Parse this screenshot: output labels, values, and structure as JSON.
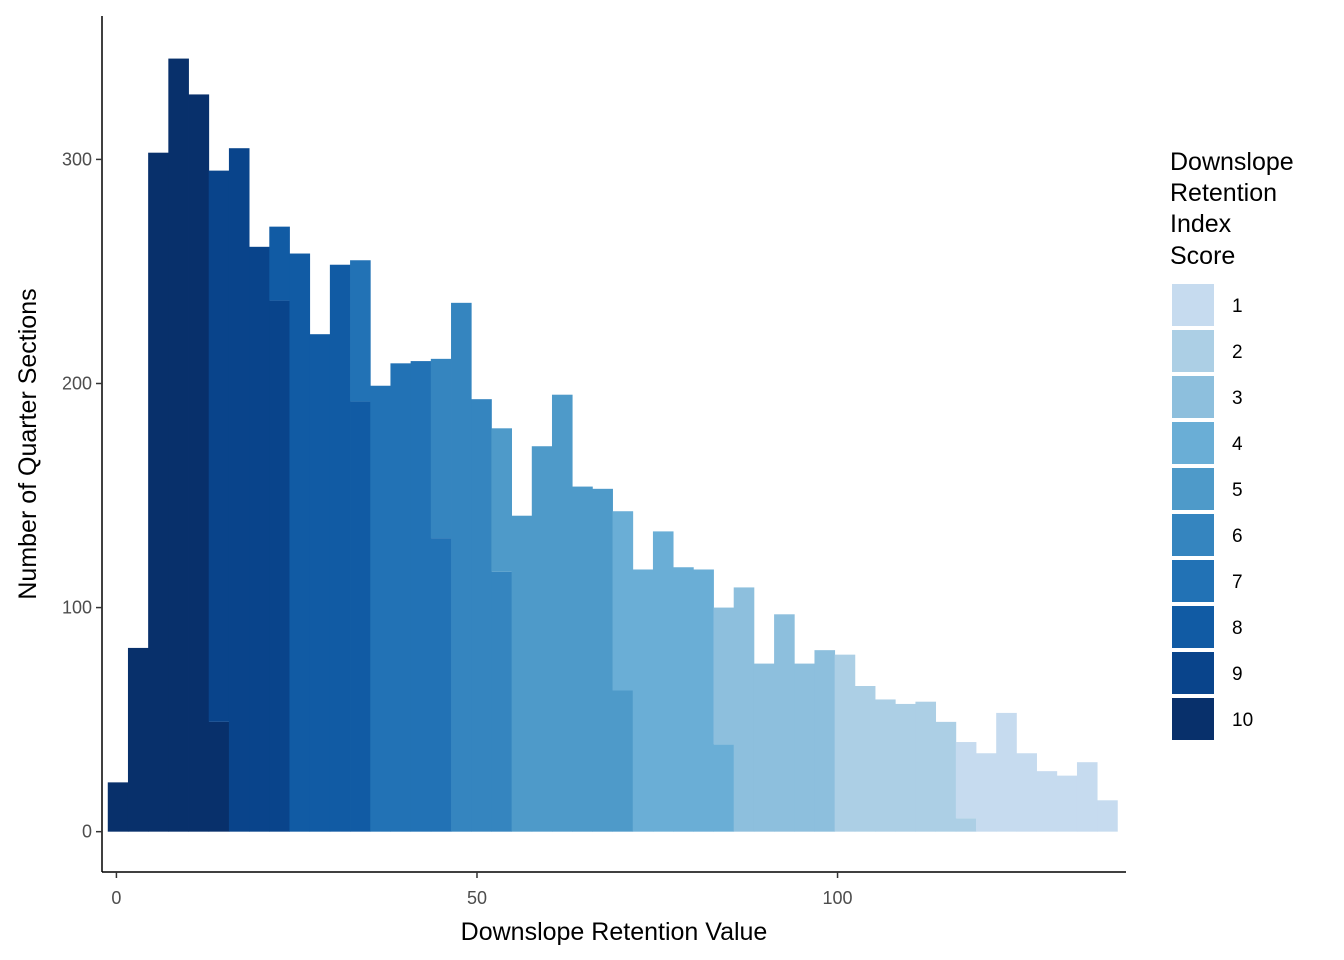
{
  "chart_data": {
    "type": "bar",
    "subtype": "stacked histogram",
    "xlabel": "Downslope Retention Value",
    "ylabel": "Number of Quarter Sections",
    "xlim": [
      -2,
      140
    ],
    "ylim": [
      -18,
      364
    ],
    "x_ticks": [
      0,
      50,
      100
    ],
    "y_ticks": [
      0,
      100,
      200,
      300
    ],
    "grid": false,
    "legend": {
      "title": [
        "Downslope",
        "Retention",
        "Index",
        "Score"
      ],
      "position": "right",
      "entries": [
        {
          "label": "1",
          "color": "#C6DBEF"
        },
        {
          "label": "2",
          "color": "#ACCFE5"
        },
        {
          "label": "3",
          "color": "#8DBFDD"
        },
        {
          "label": "4",
          "color": "#6AAED6"
        },
        {
          "label": "5",
          "color": "#4E9AC9"
        },
        {
          "label": "6",
          "color": "#3585BF"
        },
        {
          "label": "7",
          "color": "#2272B5"
        },
        {
          "label": "8",
          "color": "#115BA4"
        },
        {
          "label": "9",
          "color": "#09448B"
        },
        {
          "label": "10",
          "color": "#08306B"
        }
      ]
    },
    "bins": [
      {
        "x0": -1.2,
        "x1": 1.6,
        "segments": [
          {
            "score": "10",
            "count": 22
          }
        ]
      },
      {
        "x0": 1.6,
        "x1": 4.4,
        "segments": [
          {
            "score": "10",
            "count": 82
          }
        ]
      },
      {
        "x0": 4.4,
        "x1": 7.2,
        "segments": [
          {
            "score": "10",
            "count": 303
          }
        ]
      },
      {
        "x0": 7.2,
        "x1": 10.0,
        "segments": [
          {
            "score": "10",
            "count": 345
          }
        ]
      },
      {
        "x0": 10.0,
        "x1": 12.8,
        "segments": [
          {
            "score": "10",
            "count": 329
          }
        ]
      },
      {
        "x0": 12.8,
        "x1": 15.6,
        "segments": [
          {
            "score": "10",
            "count": 49
          },
          {
            "score": "9",
            "count": 246
          }
        ]
      },
      {
        "x0": 15.6,
        "x1": 18.4,
        "segments": [
          {
            "score": "9",
            "count": 305
          }
        ]
      },
      {
        "x0": 18.4,
        "x1": 21.2,
        "segments": [
          {
            "score": "9",
            "count": 261
          }
        ]
      },
      {
        "x0": 21.2,
        "x1": 24.0,
        "segments": [
          {
            "score": "9",
            "count": 237
          },
          {
            "score": "8",
            "count": 33
          }
        ]
      },
      {
        "x0": 24.0,
        "x1": 26.8,
        "segments": [
          {
            "score": "8",
            "count": 258
          }
        ]
      },
      {
        "x0": 26.8,
        "x1": 29.6,
        "segments": [
          {
            "score": "8",
            "count": 222
          }
        ]
      },
      {
        "x0": 29.6,
        "x1": 32.4,
        "segments": [
          {
            "score": "8",
            "count": 253
          }
        ]
      },
      {
        "x0": 32.4,
        "x1": 35.2,
        "segments": [
          {
            "score": "8",
            "count": 192
          },
          {
            "score": "7",
            "count": 63
          }
        ]
      },
      {
        "x0": 35.2,
        "x1": 38.0,
        "segments": [
          {
            "score": "7",
            "count": 199
          }
        ]
      },
      {
        "x0": 38.0,
        "x1": 40.8,
        "segments": [
          {
            "score": "7",
            "count": 209
          }
        ]
      },
      {
        "x0": 40.8,
        "x1": 43.6,
        "segments": [
          {
            "score": "7",
            "count": 210
          }
        ]
      },
      {
        "x0": 43.6,
        "x1": 46.4,
        "segments": [
          {
            "score": "7",
            "count": 131
          },
          {
            "score": "6",
            "count": 80
          }
        ]
      },
      {
        "x0": 46.4,
        "x1": 49.2,
        "segments": [
          {
            "score": "6",
            "count": 236
          }
        ]
      },
      {
        "x0": 49.2,
        "x1": 52.0,
        "segments": [
          {
            "score": "6",
            "count": 193
          }
        ]
      },
      {
        "x0": 52.0,
        "x1": 54.8,
        "segments": [
          {
            "score": "6",
            "count": 116
          },
          {
            "score": "5",
            "count": 64
          }
        ]
      },
      {
        "x0": 54.8,
        "x1": 57.6,
        "segments": [
          {
            "score": "5",
            "count": 141
          }
        ]
      },
      {
        "x0": 57.6,
        "x1": 60.4,
        "segments": [
          {
            "score": "5",
            "count": 172
          }
        ]
      },
      {
        "x0": 60.4,
        "x1": 63.2,
        "segments": [
          {
            "score": "5",
            "count": 195
          }
        ]
      },
      {
        "x0": 63.2,
        "x1": 66.0,
        "segments": [
          {
            "score": "5",
            "count": 154
          }
        ]
      },
      {
        "x0": 66.0,
        "x1": 68.8,
        "segments": [
          {
            "score": "5",
            "count": 153
          }
        ]
      },
      {
        "x0": 68.8,
        "x1": 71.6,
        "segments": [
          {
            "score": "5",
            "count": 63
          },
          {
            "score": "4",
            "count": 80
          }
        ]
      },
      {
        "x0": 71.6,
        "x1": 74.4,
        "segments": [
          {
            "score": "4",
            "count": 117
          }
        ]
      },
      {
        "x0": 74.4,
        "x1": 77.2,
        "segments": [
          {
            "score": "4",
            "count": 134
          }
        ]
      },
      {
        "x0": 77.2,
        "x1": 80.0,
        "segments": [
          {
            "score": "4",
            "count": 118
          }
        ]
      },
      {
        "x0": 80.0,
        "x1": 82.8,
        "segments": [
          {
            "score": "4",
            "count": 117
          }
        ]
      },
      {
        "x0": 82.8,
        "x1": 85.6,
        "segments": [
          {
            "score": "4",
            "count": 39
          },
          {
            "score": "3",
            "count": 61
          }
        ]
      },
      {
        "x0": 85.6,
        "x1": 88.4,
        "segments": [
          {
            "score": "3",
            "count": 109
          }
        ]
      },
      {
        "x0": 88.4,
        "x1": 91.2,
        "segments": [
          {
            "score": "3",
            "count": 75
          }
        ]
      },
      {
        "x0": 91.2,
        "x1": 94.0,
        "segments": [
          {
            "score": "3",
            "count": 97
          }
        ]
      },
      {
        "x0": 94.0,
        "x1": 96.8,
        "segments": [
          {
            "score": "3",
            "count": 75
          }
        ]
      },
      {
        "x0": 96.8,
        "x1": 99.6,
        "segments": [
          {
            "score": "3",
            "count": 81
          }
        ]
      },
      {
        "x0": 99.6,
        "x1": 102.4,
        "segments": [
          {
            "score": "2",
            "count": 79
          }
        ]
      },
      {
        "x0": 102.4,
        "x1": 105.2,
        "segments": [
          {
            "score": "2",
            "count": 65
          }
        ]
      },
      {
        "x0": 105.2,
        "x1": 108.0,
        "segments": [
          {
            "score": "2",
            "count": 59
          }
        ]
      },
      {
        "x0": 108.0,
        "x1": 110.8,
        "segments": [
          {
            "score": "2",
            "count": 57
          }
        ]
      },
      {
        "x0": 110.8,
        "x1": 113.6,
        "segments": [
          {
            "score": "2",
            "count": 58
          }
        ]
      },
      {
        "x0": 113.6,
        "x1": 116.4,
        "segments": [
          {
            "score": "2",
            "count": 49
          }
        ]
      },
      {
        "x0": 116.4,
        "x1": 119.2,
        "segments": [
          {
            "score": "2",
            "count": 6
          },
          {
            "score": "1",
            "count": 34
          }
        ]
      },
      {
        "x0": 119.2,
        "x1": 122.0,
        "segments": [
          {
            "score": "1",
            "count": 35
          }
        ]
      },
      {
        "x0": 122.0,
        "x1": 124.8,
        "segments": [
          {
            "score": "1",
            "count": 53
          }
        ]
      },
      {
        "x0": 124.8,
        "x1": 127.6,
        "segments": [
          {
            "score": "1",
            "count": 35
          }
        ]
      },
      {
        "x0": 127.6,
        "x1": 130.4,
        "segments": [
          {
            "score": "1",
            "count": 27
          }
        ]
      },
      {
        "x0": 130.4,
        "x1": 133.2,
        "segments": [
          {
            "score": "1",
            "count": 25
          }
        ]
      },
      {
        "x0": 133.2,
        "x1": 136.0,
        "segments": [
          {
            "score": "1",
            "count": 31
          }
        ]
      },
      {
        "x0": 136.0,
        "x1": 138.8,
        "segments": [
          {
            "score": "1",
            "count": 14
          }
        ]
      }
    ]
  }
}
